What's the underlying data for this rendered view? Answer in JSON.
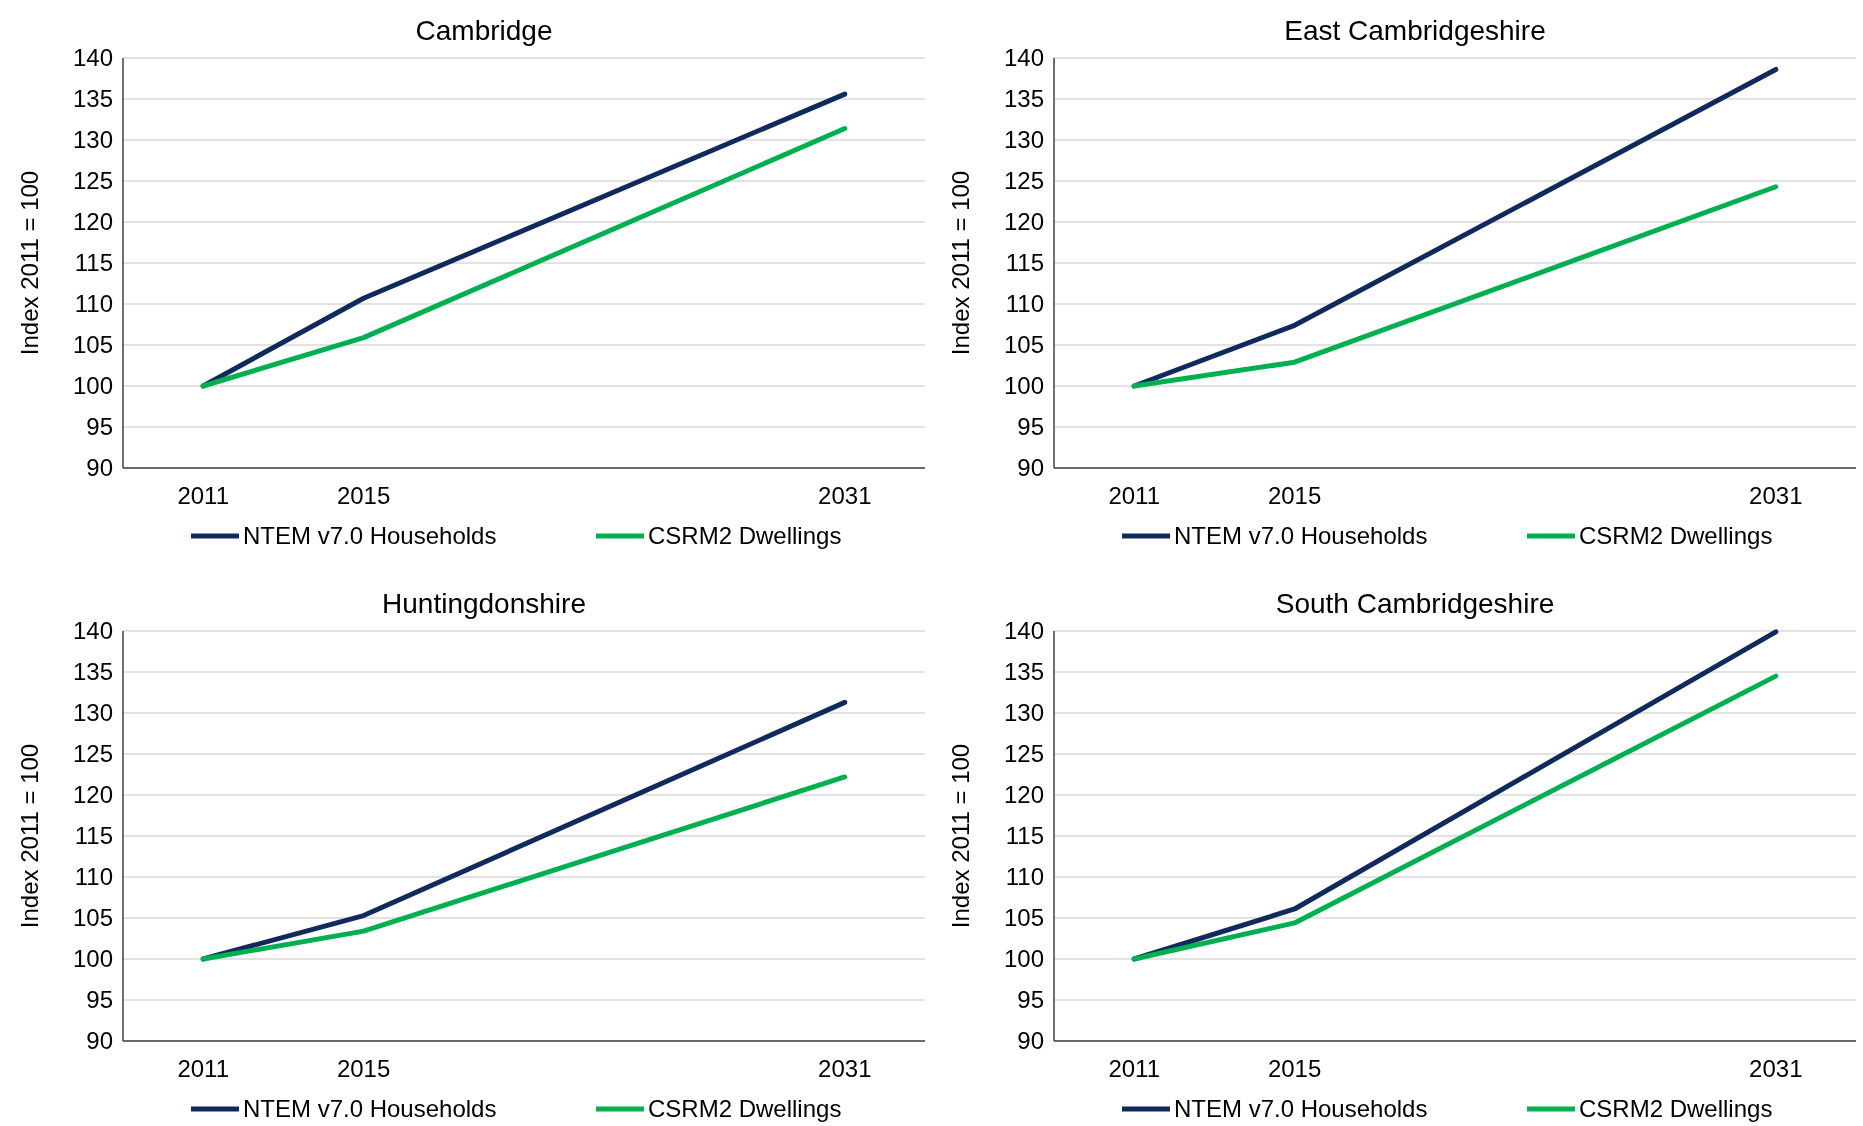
{
  "chart_data": [
    {
      "type": "line",
      "title": "Cambridge",
      "ylabel": "Index 2011 = 100",
      "categories": [
        "2011",
        "2015",
        null,
        null,
        "2031"
      ],
      "series": [
        {
          "name": "NTEM v7.0 Households",
          "color": "#112a5e",
          "values": [
            100,
            110.7,
            null,
            null,
            135.6
          ]
        },
        {
          "name": "CSRM2 Dwellings",
          "color": "#00b050",
          "values": [
            100,
            105.9,
            null,
            null,
            131.4
          ]
        }
      ],
      "ylim": [
        90,
        140
      ],
      "yticks": [
        90,
        95,
        100,
        105,
        110,
        115,
        120,
        125,
        130,
        135,
        140
      ],
      "grid": "y",
      "legend": "bottom",
      "marker": "none"
    },
    {
      "type": "line",
      "title": "East Cambridgeshire",
      "ylabel": "Index 2011 = 100",
      "categories": [
        "2011",
        "2015",
        null,
        null,
        "2031"
      ],
      "series": [
        {
          "name": "NTEM v7.0 Households",
          "color": "#112a5e",
          "values": [
            100,
            107.4,
            null,
            null,
            138.6
          ]
        },
        {
          "name": "CSRM2 Dwellings",
          "color": "#00b050",
          "values": [
            100,
            102.9,
            null,
            null,
            124.3
          ]
        }
      ],
      "ylim": [
        90,
        140
      ],
      "yticks": [
        90,
        95,
        100,
        105,
        110,
        115,
        120,
        125,
        130,
        135,
        140
      ],
      "grid": "y",
      "legend": "bottom",
      "marker": "none"
    },
    {
      "type": "line",
      "title": "Huntingdonshire",
      "ylabel": "Index 2011 = 100",
      "categories": [
        "2011",
        "2015",
        null,
        null,
        "2031"
      ],
      "series": [
        {
          "name": "NTEM v7.0 Households",
          "color": "#112a5e",
          "values": [
            100,
            105.3,
            null,
            null,
            131.3
          ]
        },
        {
          "name": "CSRM2 Dwellings",
          "color": "#00b050",
          "values": [
            100,
            103.4,
            null,
            null,
            122.2
          ]
        }
      ],
      "ylim": [
        90,
        140
      ],
      "yticks": [
        90,
        95,
        100,
        105,
        110,
        115,
        120,
        125,
        130,
        135,
        140
      ],
      "grid": "y",
      "legend": "bottom",
      "marker": "none"
    },
    {
      "type": "line",
      "title": "South Cambridgeshire",
      "ylabel": "Index 2011 = 100",
      "categories": [
        "2011",
        "2015",
        null,
        null,
        "2031"
      ],
      "series": [
        {
          "name": "NTEM v7.0 Households",
          "color": "#112a5e",
          "values": [
            100,
            106.1,
            null,
            null,
            139.9
          ]
        },
        {
          "name": "CSRM2 Dwellings",
          "color": "#00b050",
          "values": [
            100,
            104.4,
            null,
            null,
            134.5
          ]
        }
      ],
      "ylim": [
        90,
        140
      ],
      "yticks": [
        90,
        95,
        100,
        105,
        110,
        115,
        120,
        125,
        130,
        135,
        140
      ],
      "grid": "y",
      "legend": "bottom",
      "marker": "none"
    }
  ]
}
